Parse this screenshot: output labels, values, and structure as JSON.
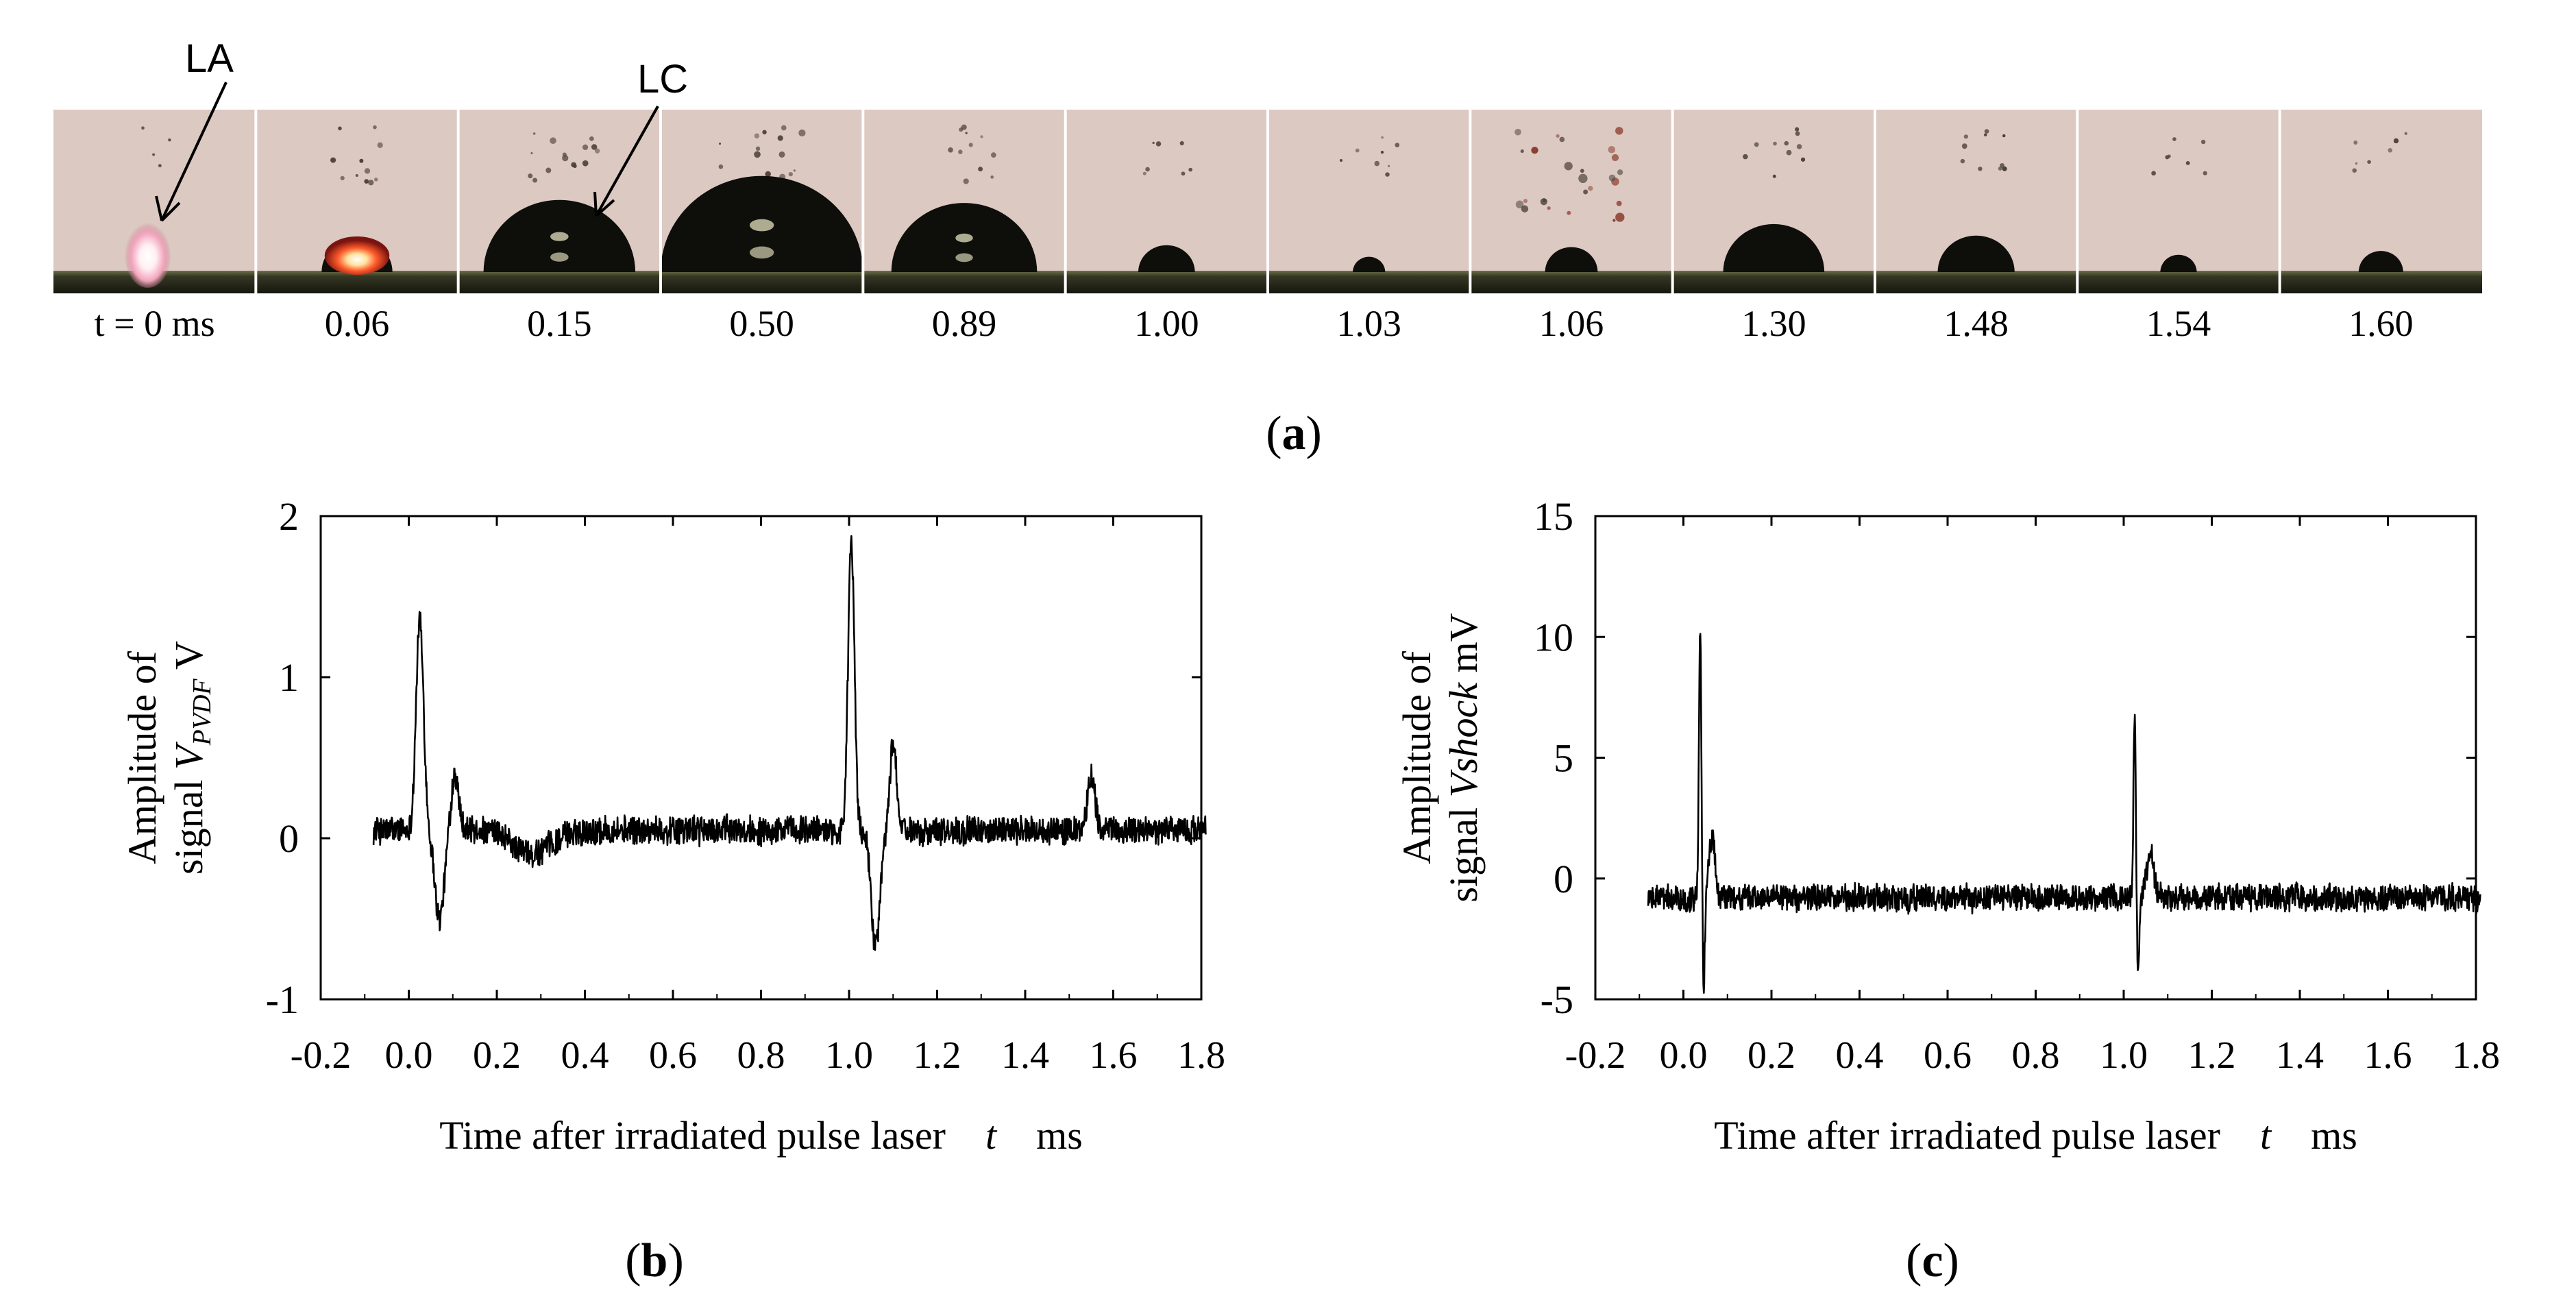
{
  "figure": {
    "panel_a": {
      "label_open": "(",
      "label_letter": "a",
      "label_close": ")",
      "annotation_la": "LA",
      "annotation_lc": "LC",
      "frames": [
        {
          "time_label": "t = 0 ms",
          "bubble": 0.0,
          "flash": true,
          "ejecta": 0.0
        },
        {
          "time_label": "0.06",
          "bubble": 0.35,
          "flash": true,
          "ejecta": 0.3
        },
        {
          "time_label": "0.15",
          "bubble": 0.75,
          "flash": false,
          "ejecta": 0.5
        },
        {
          "time_label": "0.50",
          "bubble": 1.0,
          "flash": false,
          "ejecta": 0.6
        },
        {
          "time_label": "0.89",
          "bubble": 0.72,
          "flash": false,
          "ejecta": 0.3
        },
        {
          "time_label": "1.00",
          "bubble": 0.28,
          "flash": false,
          "ejecta": 0.15
        },
        {
          "time_label": "1.03",
          "bubble": 0.16,
          "flash": false,
          "ejecta": 0.2
        },
        {
          "time_label": "1.06",
          "bubble": 0.26,
          "flash": false,
          "ejecta": 1.0
        },
        {
          "time_label": "1.30",
          "bubble": 0.5,
          "flash": false,
          "ejecta": 0.25
        },
        {
          "time_label": "1.48",
          "bubble": 0.38,
          "flash": false,
          "ejecta": 0.25
        },
        {
          "time_label": "1.54",
          "bubble": 0.18,
          "flash": false,
          "ejecta": 0.15
        },
        {
          "time_label": "1.60",
          "bubble": 0.22,
          "flash": false,
          "ejecta": 0.15
        }
      ]
    },
    "panel_b": {
      "label_open": "(",
      "label_letter": "b",
      "label_close": ")"
    },
    "panel_c": {
      "label_open": "(",
      "label_letter": "c",
      "label_close": ")"
    }
  },
  "chart_data": [
    {
      "id": "b",
      "type": "line",
      "title": "",
      "xlabel_text": "Time after irradiated pulse laser",
      "xlabel_var": "t",
      "xlabel_unit": "ms",
      "ylabel_line1": "Amplitude of",
      "ylabel_line2_pre": "signal ",
      "ylabel_var": "V",
      "ylabel_sub": "PVDF",
      "ylabel_unit": " V",
      "xlim": [
        -0.2,
        1.8
      ],
      "ylim": [
        -1,
        2
      ],
      "xticks": [
        -0.2,
        0.0,
        0.2,
        0.4,
        0.6,
        0.8,
        1.0,
        1.2,
        1.4,
        1.6,
        1.8
      ],
      "xtick_labels": [
        "-0.2",
        "0.0",
        "0.2",
        "0.4",
        "0.6",
        "0.8",
        "1.0",
        "1.2",
        "1.4",
        "1.6",
        "1.8"
      ],
      "yticks": [
        -1,
        0,
        1,
        2
      ],
      "ytick_labels": [
        "-1",
        "0",
        "1",
        "2"
      ],
      "signal": {
        "start": -0.08,
        "end": 1.81,
        "baseline": 0.05,
        "noise": 0.08,
        "events": [
          {
            "t": 0.025,
            "amp": 1.3,
            "w": 0.012
          },
          {
            "t": 0.07,
            "amp": -0.55,
            "w": 0.015
          },
          {
            "t": 0.105,
            "amp": 0.35,
            "w": 0.012
          },
          {
            "t": 0.28,
            "amp": -0.15,
            "w": 0.06
          },
          {
            "t": 1.005,
            "amp": 1.8,
            "w": 0.01
          },
          {
            "t": 1.06,
            "amp": -0.72,
            "w": 0.014
          },
          {
            "t": 1.1,
            "amp": 0.55,
            "w": 0.01
          },
          {
            "t": 1.55,
            "amp": 0.35,
            "w": 0.012
          }
        ]
      },
      "grid": false,
      "legend": "none"
    },
    {
      "id": "c",
      "type": "line",
      "title": "",
      "xlabel_text": "Time after irradiated pulse laser",
      "xlabel_var": "t",
      "xlabel_unit": "ms",
      "ylabel_line1": "Amplitude of",
      "ylabel_line2_pre": "signal ",
      "ylabel_var": "Vshock",
      "ylabel_sub": "",
      "ylabel_unit": " mV",
      "xlim": [
        -0.2,
        1.8
      ],
      "ylim": [
        -5,
        15
      ],
      "xticks": [
        -0.2,
        0.0,
        0.2,
        0.4,
        0.6,
        0.8,
        1.0,
        1.2,
        1.4,
        1.6,
        1.8
      ],
      "xtick_labels": [
        "-0.2",
        "0.0",
        "0.2",
        "0.4",
        "0.6",
        "0.8",
        "1.0",
        "1.2",
        "1.4",
        "1.6",
        "1.8"
      ],
      "yticks": [
        -5,
        0,
        5,
        10,
        15
      ],
      "ytick_labels": [
        "-5",
        "0",
        "5",
        "10",
        "15"
      ],
      "signal": {
        "start": -0.08,
        "end": 1.81,
        "baseline": -0.8,
        "noise": 0.5,
        "events": [
          {
            "t": 0.038,
            "amp": 11.2,
            "w": 0.004
          },
          {
            "t": 0.046,
            "amp": -3.6,
            "w": 0.004
          },
          {
            "t": 0.065,
            "amp": 2.5,
            "w": 0.01
          },
          {
            "t": 1.025,
            "amp": 7.3,
            "w": 0.004
          },
          {
            "t": 1.032,
            "amp": -3.3,
            "w": 0.004
          },
          {
            "t": 1.06,
            "amp": 1.8,
            "w": 0.012
          }
        ]
      },
      "grid": false,
      "legend": "none"
    }
  ]
}
